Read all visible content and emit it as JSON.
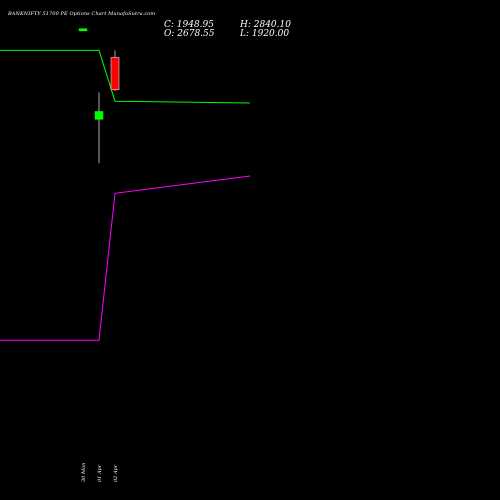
{
  "header": {
    "title": "BANKNIFTY 51700  PE Options  Chart MunafaSutra.com",
    "close_text": "C: 1948.95",
    "open_text": "O: 2678.55",
    "high_text": "H: 2840.10",
    "low_text": "L: 1920.00"
  },
  "colors": {
    "background": "#000000",
    "upper_line": "#00ff00",
    "lower_line": "#ff00ff",
    "bull_candle": "#00ff00",
    "bear_candle": "#ff0000",
    "wick": "#aaaaaa"
  },
  "chart_data": {
    "type": "line",
    "categories": [
      "",
      "30 Mon",
      "01 Apr",
      "02 Apr",
      ""
    ],
    "series": [
      {
        "values": [
          2840,
          2840,
          2840,
          1690,
          1650
        ]
      },
      {
        "values": [
          -3710,
          -3710,
          -3710,
          -390,
          0
        ]
      }
    ],
    "candles": [
      {
        "x": "30 Mon",
        "open": 3280,
        "close": 3330,
        "high": 3330,
        "low": 3280
      },
      {
        "x": "01 Apr",
        "open": 1280,
        "close": 1460,
        "high": 1890,
        "low": 290
      },
      {
        "x": "02 Apr",
        "open": 2678.55,
        "close": 1948.95,
        "high": 2840.1,
        "low": 1920.0
      }
    ],
    "ylim": [
      -8000,
      3300
    ]
  }
}
